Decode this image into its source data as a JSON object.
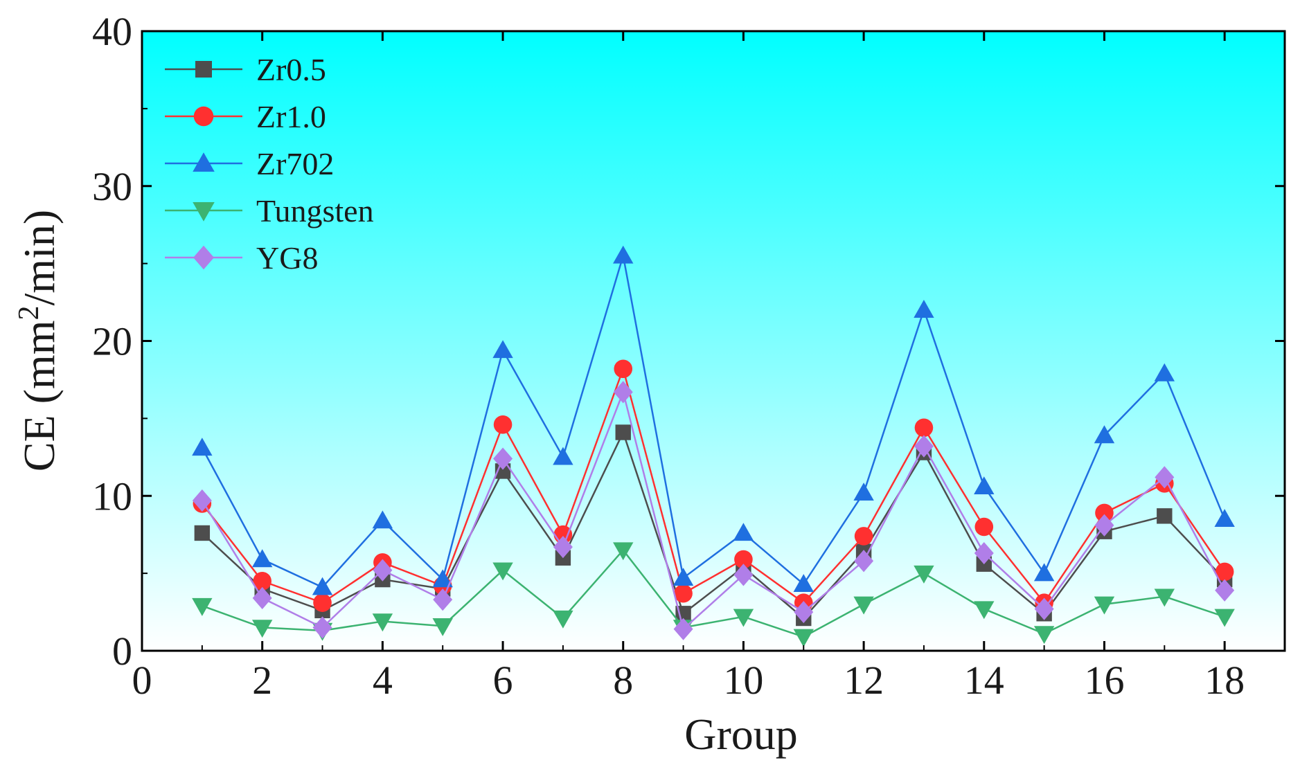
{
  "chart_data": {
    "type": "line",
    "title": "",
    "xlabel": "Group",
    "ylabel_prefix": "CE (mm",
    "ylabel_sup": "2",
    "ylabel_suffix": "/min)",
    "xlim": [
      0,
      19
    ],
    "ylim": [
      0,
      40
    ],
    "xticks": [
      0,
      2,
      4,
      6,
      8,
      10,
      12,
      14,
      16,
      18
    ],
    "yticks": [
      0,
      10,
      20,
      30,
      40
    ],
    "grid": false,
    "legend_position": "top-left",
    "background_gradient": [
      "#00ffff",
      "#ffffff"
    ],
    "x": [
      1,
      2,
      3,
      4,
      5,
      6,
      7,
      8,
      9,
      10,
      11,
      12,
      13,
      14,
      15,
      16,
      17,
      18
    ],
    "series": [
      {
        "name": "Zr0.5",
        "color": "#4d4d4d",
        "marker": "square",
        "values": [
          7.6,
          4.0,
          2.6,
          4.6,
          4.0,
          11.6,
          6.0,
          14.1,
          2.4,
          5.4,
          2.1,
          6.4,
          12.8,
          5.6,
          2.4,
          7.7,
          8.7,
          4.6
        ]
      },
      {
        "name": "Zr1.0",
        "color": "#ff3030",
        "marker": "circle",
        "values": [
          9.5,
          4.5,
          3.1,
          5.7,
          4.2,
          14.6,
          7.5,
          18.2,
          3.7,
          5.9,
          3.1,
          7.4,
          14.4,
          8.0,
          3.1,
          8.9,
          10.8,
          5.1
        ]
      },
      {
        "name": "Zr702",
        "color": "#1f6fe0",
        "marker": "triangle-up",
        "values": [
          13.1,
          5.9,
          4.1,
          8.4,
          4.6,
          19.4,
          12.5,
          25.5,
          4.7,
          7.6,
          4.3,
          10.2,
          22.0,
          10.6,
          5.0,
          13.9,
          17.9,
          8.5
        ]
      },
      {
        "name": "Tungsten",
        "color": "#3cb371",
        "marker": "triangle-down",
        "values": [
          2.9,
          1.5,
          1.3,
          1.9,
          1.6,
          5.2,
          2.1,
          6.5,
          1.5,
          2.2,
          0.9,
          3.0,
          5.0,
          2.7,
          1.1,
          3.0,
          3.5,
          2.2
        ]
      },
      {
        "name": "YG8",
        "color": "#b07ee8",
        "marker": "diamond",
        "values": [
          9.7,
          3.4,
          1.5,
          5.2,
          3.3,
          12.4,
          6.7,
          16.7,
          1.4,
          4.9,
          2.5,
          5.8,
          13.2,
          6.3,
          2.7,
          8.1,
          11.2,
          3.9
        ]
      }
    ]
  }
}
